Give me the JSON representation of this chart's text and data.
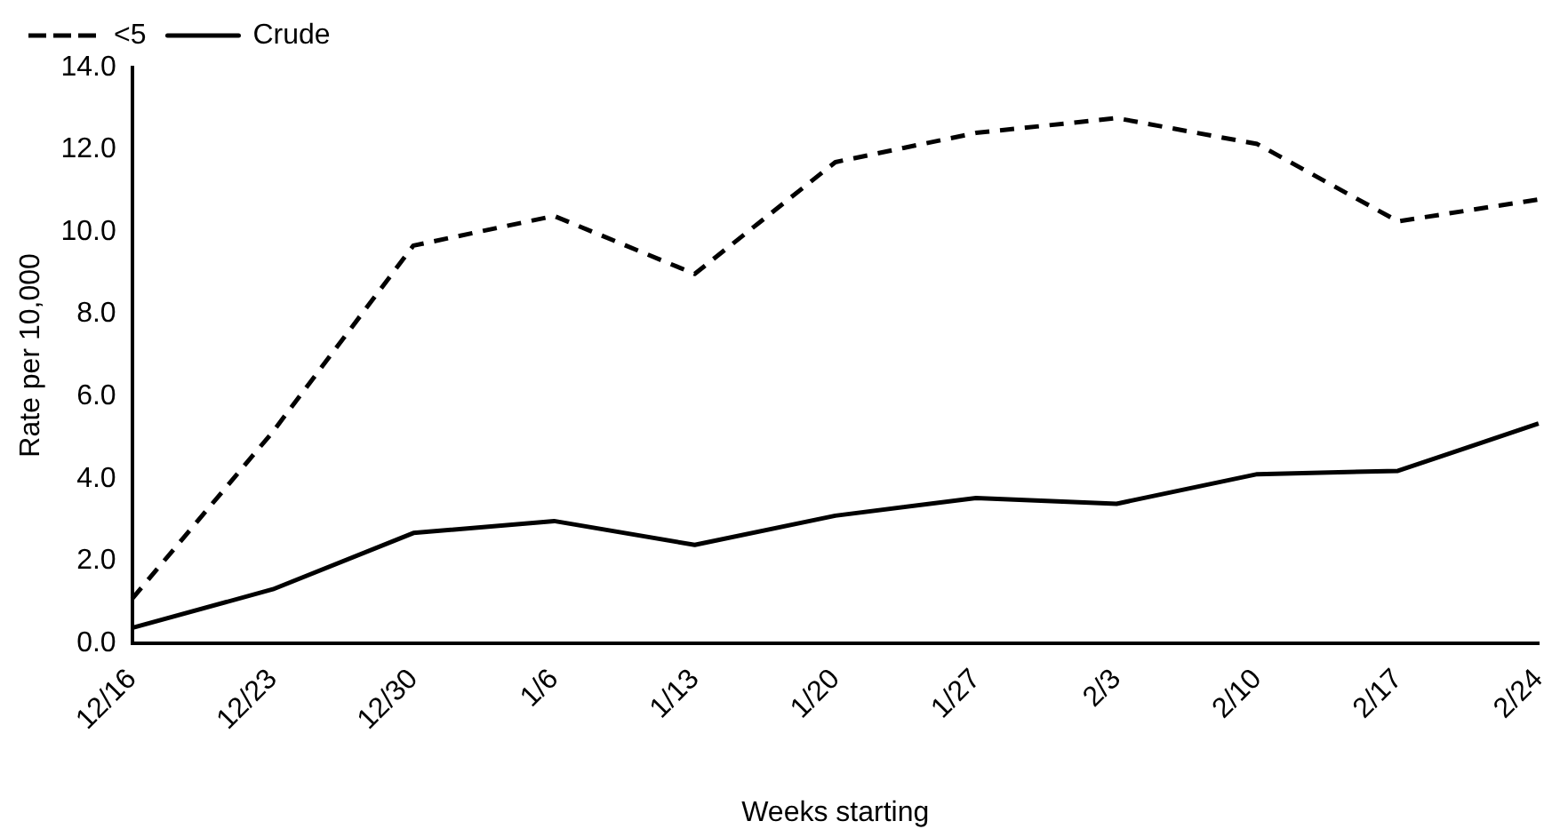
{
  "chart_data": {
    "type": "line",
    "xlabel": "Weeks starting",
    "ylabel": "Rate per 10,000",
    "categories": [
      "12/16",
      "12/23",
      "12/30",
      "1/6",
      "1/13",
      "1/20",
      "1/27",
      "2/3",
      "2/10",
      "2/17",
      "2/24"
    ],
    "series": [
      {
        "name": "<5",
        "color": "#000000",
        "line_style": "dashed",
        "values": [
          1.08,
          5.14,
          9.67,
          10.39,
          8.98,
          11.7,
          12.41,
          12.77,
          12.14,
          10.26,
          10.79
        ]
      },
      {
        "name": "Crude",
        "color": "#000000",
        "line_style": "solid",
        "values": [
          0.37,
          1.31,
          2.68,
          2.97,
          2.39,
          3.1,
          3.53,
          3.39,
          4.11,
          4.19,
          5.34
        ]
      }
    ],
    "ylim": [
      0,
      14
    ],
    "yticks": [
      {
        "value": 0,
        "label": "0.0"
      },
      {
        "value": 2,
        "label": "2.0"
      },
      {
        "value": 4,
        "label": "4.0"
      },
      {
        "value": 6,
        "label": "6.0"
      },
      {
        "value": 8,
        "label": "8.0"
      },
      {
        "value": 10,
        "label": "10.0"
      },
      {
        "value": 12,
        "label": "12.0"
      },
      {
        "value": 14,
        "label": "14.0"
      }
    ],
    "grid": false,
    "legend": "top left",
    "marker": "none"
  }
}
